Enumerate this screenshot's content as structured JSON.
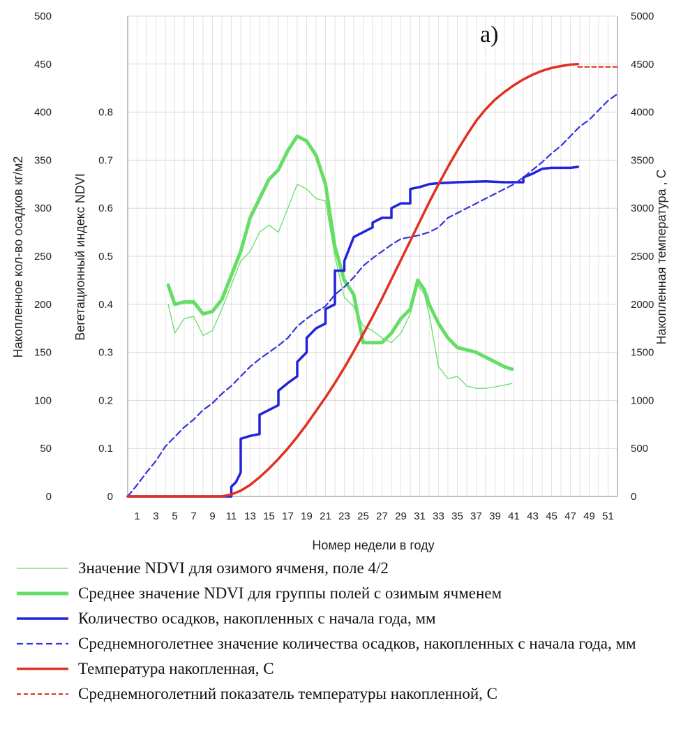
{
  "chart_data": {
    "type": "line",
    "panel_label": "a)",
    "xlabel": "Номер недели в году",
    "x_ticks": [
      1,
      3,
      5,
      7,
      9,
      11,
      13,
      15,
      17,
      19,
      21,
      23,
      25,
      27,
      29,
      31,
      33,
      35,
      37,
      39,
      41,
      43,
      45,
      47,
      49,
      51
    ],
    "xlim": [
      0,
      52
    ],
    "grid": true,
    "axes": {
      "left_outer": {
        "label": "Накопленное кол-во осадков кг/м2",
        "lim": [
          0,
          500
        ],
        "ticks": [
          0,
          50,
          100,
          150,
          200,
          250,
          300,
          350,
          400,
          450,
          500
        ]
      },
      "left_inner": {
        "label": "Вегетационный индекс NDVI",
        "lim": [
          0,
          1
        ],
        "ticks": [
          0,
          0.1,
          0.2,
          0.3,
          0.4,
          0.5,
          0.6,
          0.7,
          0.8
        ],
        "tick_labels": [
          "0",
          "0.1",
          "0.2",
          "0.3",
          "0.4",
          "0.5",
          "0.6",
          "0.7",
          "0.8"
        ]
      },
      "right": {
        "label": "Накопленная температура , С",
        "lim": [
          0,
          5000
        ],
        "ticks": [
          0,
          500,
          1000,
          1500,
          2000,
          2500,
          3000,
          3500,
          4000,
          4500,
          5000
        ]
      }
    },
    "series": [
      {
        "name": "Значение NDVI для озимого ячменя, поле 4/2",
        "axis": "left_inner",
        "color": "#66dd66",
        "width": 1.3,
        "dash": "",
        "points": [
          [
            4.3,
            0.4
          ],
          [
            5,
            0.34
          ],
          [
            6,
            0.37
          ],
          [
            7,
            0.375
          ],
          [
            8,
            0.335
          ],
          [
            9,
            0.345
          ],
          [
            10,
            0.39
          ],
          [
            11,
            0.44
          ],
          [
            12,
            0.49
          ],
          [
            13,
            0.51
          ],
          [
            14,
            0.55
          ],
          [
            15,
            0.565
          ],
          [
            16,
            0.55
          ],
          [
            17,
            0.6
          ],
          [
            18,
            0.65
          ],
          [
            19,
            0.64
          ],
          [
            20,
            0.62
          ],
          [
            21,
            0.615
          ],
          [
            22,
            0.5
          ],
          [
            23,
            0.415
          ],
          [
            24,
            0.395
          ],
          [
            25,
            0.355
          ],
          [
            26,
            0.345
          ],
          [
            27,
            0.33
          ],
          [
            28,
            0.32
          ],
          [
            29,
            0.34
          ],
          [
            30,
            0.38
          ],
          [
            30.8,
            0.44
          ],
          [
            31.5,
            0.42
          ],
          [
            32,
            0.38
          ],
          [
            33,
            0.27
          ],
          [
            34,
            0.245
          ],
          [
            35,
            0.25
          ],
          [
            36,
            0.23
          ],
          [
            37,
            0.225
          ],
          [
            38,
            0.225
          ],
          [
            39,
            0.228
          ],
          [
            40,
            0.232
          ],
          [
            40.8,
            0.235
          ]
        ]
      },
      {
        "name": "Среднее значение NDVI для группы полей с озимым ячменем",
        "axis": "left_inner",
        "color": "#66dd66",
        "width": 5,
        "dash": "",
        "points": [
          [
            4.3,
            0.44
          ],
          [
            5,
            0.4
          ],
          [
            6,
            0.405
          ],
          [
            7,
            0.405
          ],
          [
            8,
            0.38
          ],
          [
            9,
            0.385
          ],
          [
            10,
            0.41
          ],
          [
            11,
            0.46
          ],
          [
            12,
            0.51
          ],
          [
            13,
            0.58
          ],
          [
            14,
            0.62
          ],
          [
            15,
            0.66
          ],
          [
            16,
            0.68
          ],
          [
            17,
            0.72
          ],
          [
            18,
            0.75
          ],
          [
            19,
            0.74
          ],
          [
            20,
            0.71
          ],
          [
            21,
            0.65
          ],
          [
            22,
            0.52
          ],
          [
            23,
            0.45
          ],
          [
            24,
            0.42
          ],
          [
            25,
            0.32
          ],
          [
            26,
            0.32
          ],
          [
            27,
            0.32
          ],
          [
            28,
            0.34
          ],
          [
            29,
            0.37
          ],
          [
            30,
            0.39
          ],
          [
            30.8,
            0.45
          ],
          [
            31.5,
            0.43
          ],
          [
            32,
            0.4
          ],
          [
            33,
            0.36
          ],
          [
            34,
            0.33
          ],
          [
            35,
            0.31
          ],
          [
            36,
            0.305
          ],
          [
            37,
            0.3
          ],
          [
            38,
            0.29
          ],
          [
            39,
            0.28
          ],
          [
            40,
            0.27
          ],
          [
            40.8,
            0.265
          ]
        ]
      },
      {
        "name": "Количество осадков, накопленных с начала года, мм",
        "axis": "left_outer",
        "color": "#2222dd",
        "width": 3.5,
        "dash": "",
        "points": [
          [
            0,
            0
          ],
          [
            11,
            0
          ],
          [
            11,
            10
          ],
          [
            11.5,
            15
          ],
          [
            12,
            25
          ],
          [
            12,
            60
          ],
          [
            13,
            63
          ],
          [
            14,
            65
          ],
          [
            14,
            85
          ],
          [
            15,
            90
          ],
          [
            16,
            95
          ],
          [
            16,
            110
          ],
          [
            17,
            118
          ],
          [
            18,
            125
          ],
          [
            18,
            140
          ],
          [
            19,
            150
          ],
          [
            19,
            165
          ],
          [
            20,
            175
          ],
          [
            21,
            180
          ],
          [
            21,
            195
          ],
          [
            22,
            200
          ],
          [
            22,
            235
          ],
          [
            23,
            235
          ],
          [
            23,
            245
          ],
          [
            24,
            270
          ],
          [
            25,
            275
          ],
          [
            26,
            280
          ],
          [
            26,
            285
          ],
          [
            27,
            290
          ],
          [
            28,
            290
          ],
          [
            28,
            300
          ],
          [
            29,
            305
          ],
          [
            30,
            305
          ],
          [
            30,
            320
          ],
          [
            31,
            322
          ],
          [
            32,
            325
          ],
          [
            33,
            326
          ],
          [
            35,
            327
          ],
          [
            38,
            328
          ],
          [
            40,
            327
          ],
          [
            42,
            327
          ],
          [
            42,
            332
          ],
          [
            43,
            336
          ],
          [
            44,
            341
          ],
          [
            45,
            342
          ],
          [
            47,
            342
          ],
          [
            47.8,
            343
          ]
        ]
      },
      {
        "name": "Среднемноголетнее значение количества осадков, накопленных с начала года, мм",
        "axis": "left_outer",
        "color": "#3333dd",
        "width": 2.2,
        "dash": "9,5",
        "points": [
          [
            0,
            0
          ],
          [
            1,
            12
          ],
          [
            2,
            25
          ],
          [
            3,
            37
          ],
          [
            4,
            52
          ],
          [
            5,
            62
          ],
          [
            6,
            72
          ],
          [
            7,
            80
          ],
          [
            8,
            90
          ],
          [
            9,
            97
          ],
          [
            10,
            107
          ],
          [
            11,
            115
          ],
          [
            12,
            125
          ],
          [
            13,
            135
          ],
          [
            14,
            143
          ],
          [
            15,
            150
          ],
          [
            16,
            157
          ],
          [
            17,
            165
          ],
          [
            18,
            177
          ],
          [
            19,
            185
          ],
          [
            20,
            192
          ],
          [
            21,
            198
          ],
          [
            22,
            210
          ],
          [
            23,
            218
          ],
          [
            24,
            228
          ],
          [
            25,
            240
          ],
          [
            26,
            248
          ],
          [
            27,
            255
          ],
          [
            28,
            262
          ],
          [
            29,
            268
          ],
          [
            30,
            270
          ],
          [
            31,
            272
          ],
          [
            32,
            275
          ],
          [
            33,
            280
          ],
          [
            34,
            290
          ],
          [
            35,
            295
          ],
          [
            36,
            300
          ],
          [
            37,
            305
          ],
          [
            38,
            310
          ],
          [
            39,
            315
          ],
          [
            40,
            320
          ],
          [
            41,
            325
          ],
          [
            42,
            332
          ],
          [
            43,
            340
          ],
          [
            44,
            348
          ],
          [
            45,
            357
          ],
          [
            46,
            365
          ],
          [
            47,
            375
          ],
          [
            48,
            385
          ],
          [
            49,
            392
          ],
          [
            50,
            402
          ],
          [
            51,
            412
          ],
          [
            52,
            419
          ]
        ]
      },
      {
        "name": "Температура накопленная, С",
        "axis": "right",
        "color": "#e03020",
        "width": 3.5,
        "dash": "",
        "points": [
          [
            0,
            0
          ],
          [
            10,
            0
          ],
          [
            11,
            20
          ],
          [
            12,
            60
          ],
          [
            13,
            120
          ],
          [
            14,
            200
          ],
          [
            15,
            290
          ],
          [
            16,
            390
          ],
          [
            17,
            500
          ],
          [
            18,
            620
          ],
          [
            19,
            750
          ],
          [
            20,
            890
          ],
          [
            21,
            1030
          ],
          [
            22,
            1180
          ],
          [
            23,
            1340
          ],
          [
            24,
            1510
          ],
          [
            25,
            1690
          ],
          [
            26,
            1870
          ],
          [
            27,
            2060
          ],
          [
            28,
            2260
          ],
          [
            29,
            2460
          ],
          [
            30,
            2660
          ],
          [
            31,
            2860
          ],
          [
            32,
            3060
          ],
          [
            33,
            3250
          ],
          [
            34,
            3430
          ],
          [
            35,
            3600
          ],
          [
            36,
            3760
          ],
          [
            37,
            3910
          ],
          [
            38,
            4030
          ],
          [
            39,
            4130
          ],
          [
            40,
            4210
          ],
          [
            41,
            4280
          ],
          [
            42,
            4340
          ],
          [
            43,
            4390
          ],
          [
            44,
            4430
          ],
          [
            45,
            4460
          ],
          [
            46,
            4480
          ],
          [
            47,
            4495
          ],
          [
            47.8,
            4500
          ]
        ]
      },
      {
        "name": "Среднемноголетний показатель температуры накопленной, С",
        "axis": "right",
        "color": "#e03020",
        "width": 2,
        "dash": "6,4",
        "points": [
          [
            47.8,
            4470
          ],
          [
            52,
            4470
          ]
        ]
      }
    ]
  }
}
